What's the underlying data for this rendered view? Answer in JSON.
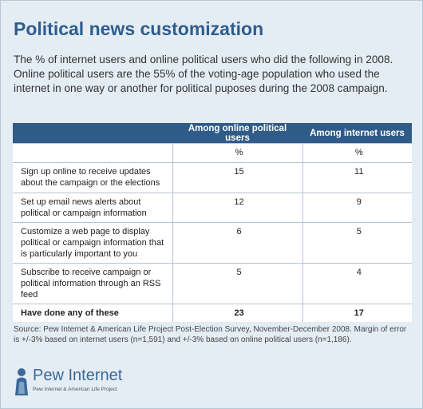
{
  "header": {
    "title": "Political news customization",
    "subtitle": "The % of internet users and online political users who did the following in 2008. Online political users are the 55% of the voting-age population who used the internet in one way or another for political puposes during the 2008 campaign."
  },
  "table": {
    "columns": [
      "",
      "Among online political users",
      "Among internet users"
    ],
    "rows": [
      [
        "",
        "%",
        "%"
      ],
      [
        "Sign up online to receive updates about the campaign or the elections",
        15,
        11
      ],
      [
        "Set up email news alerts about political or campaign information",
        12,
        9
      ],
      [
        "Customize a web page to display political or campaign information that is particularly important to you",
        6,
        5
      ],
      [
        "Subscribe to receive campaign or political information through an RSS feed",
        5,
        4
      ],
      [
        "Have done any of these",
        23,
        17
      ]
    ]
  },
  "footer": {
    "source": "Source: Pew Internet & American Life Project Post-Election Survey, November-December 2008. Margin of error is +/-3% based on internet users (n=1,591) and +/-3% based on online political users (n=1,186).",
    "logo_name": "Pew Internet",
    "logo_tagline": "Pew Internet & American Life Project"
  }
}
